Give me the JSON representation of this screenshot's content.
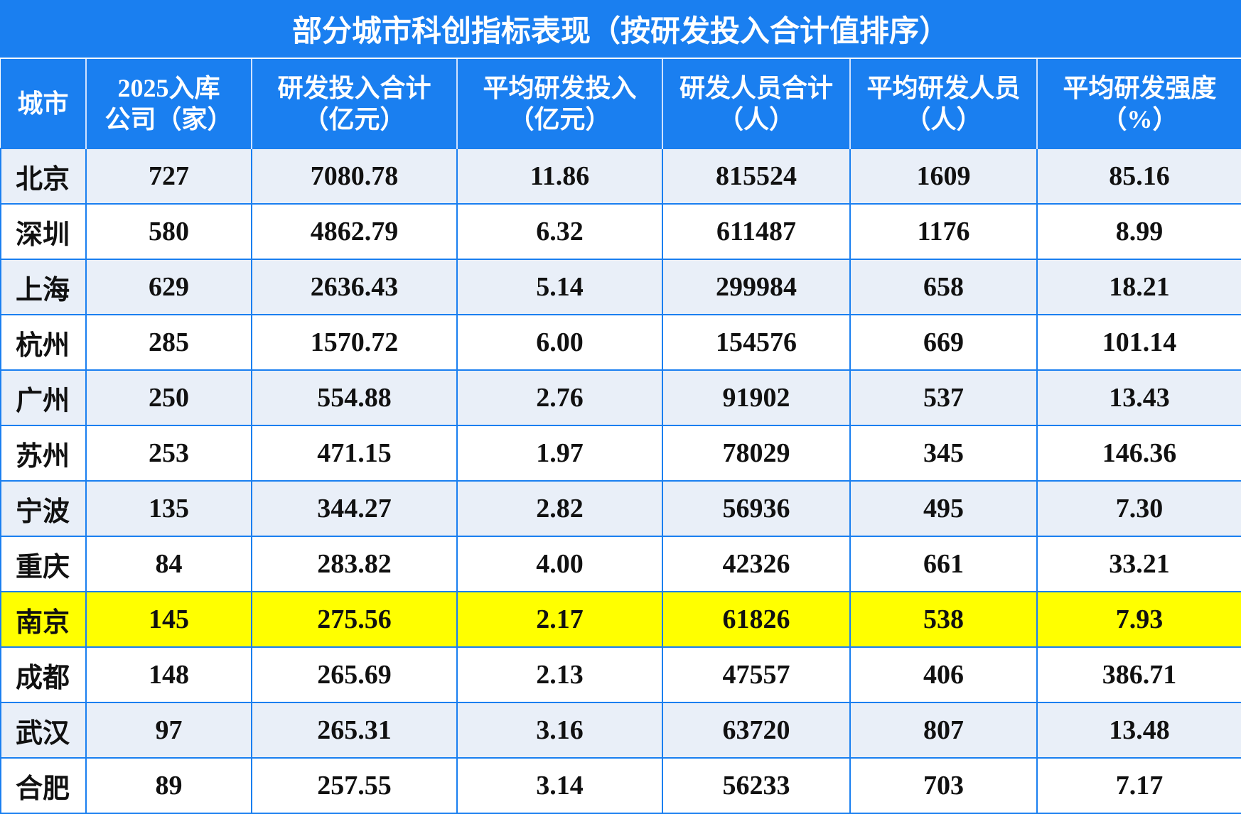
{
  "header": {
    "title": "部分城市科创指标表现（按研发投入合计值排序）"
  },
  "table": {
    "columns": [
      [
        "城市"
      ],
      [
        "2025入库",
        "公司（家）"
      ],
      [
        "研发投入合计",
        "（亿元）"
      ],
      [
        "平均研发投入",
        "（亿元）"
      ],
      [
        "研发人员合计",
        "（人）"
      ],
      [
        "平均研发人员",
        "（人）"
      ],
      [
        "平均研发强度",
        "（%）"
      ]
    ],
    "rows": [
      [
        "北京",
        "727",
        "7080.78",
        "11.86",
        "815524",
        "1609",
        "85.16"
      ],
      [
        "深圳",
        "580",
        "4862.79",
        "6.32",
        "611487",
        "1176",
        "8.99"
      ],
      [
        "上海",
        "629",
        "2636.43",
        "5.14",
        "299984",
        "658",
        "18.21"
      ],
      [
        "杭州",
        "285",
        "1570.72",
        "6.00",
        "154576",
        "669",
        "101.14"
      ],
      [
        "广州",
        "250",
        "554.88",
        "2.76",
        "91902",
        "537",
        "13.43"
      ],
      [
        "苏州",
        "253",
        "471.15",
        "1.97",
        "78029",
        "345",
        "146.36"
      ],
      [
        "宁波",
        "135",
        "344.27",
        "2.82",
        "56936",
        "495",
        "7.30"
      ],
      [
        "重庆",
        "84",
        "283.82",
        "4.00",
        "42326",
        "661",
        "33.21"
      ],
      [
        "南京",
        "145",
        "275.56",
        "2.17",
        "61826",
        "538",
        "7.93"
      ],
      [
        "成都",
        "148",
        "265.69",
        "2.13",
        "47557",
        "406",
        "386.71"
      ],
      [
        "武汉",
        "97",
        "265.31",
        "3.16",
        "63720",
        "807",
        "13.48"
      ],
      [
        "合肥",
        "89",
        "257.55",
        "3.14",
        "56233",
        "703",
        "7.17"
      ]
    ]
  }
}
